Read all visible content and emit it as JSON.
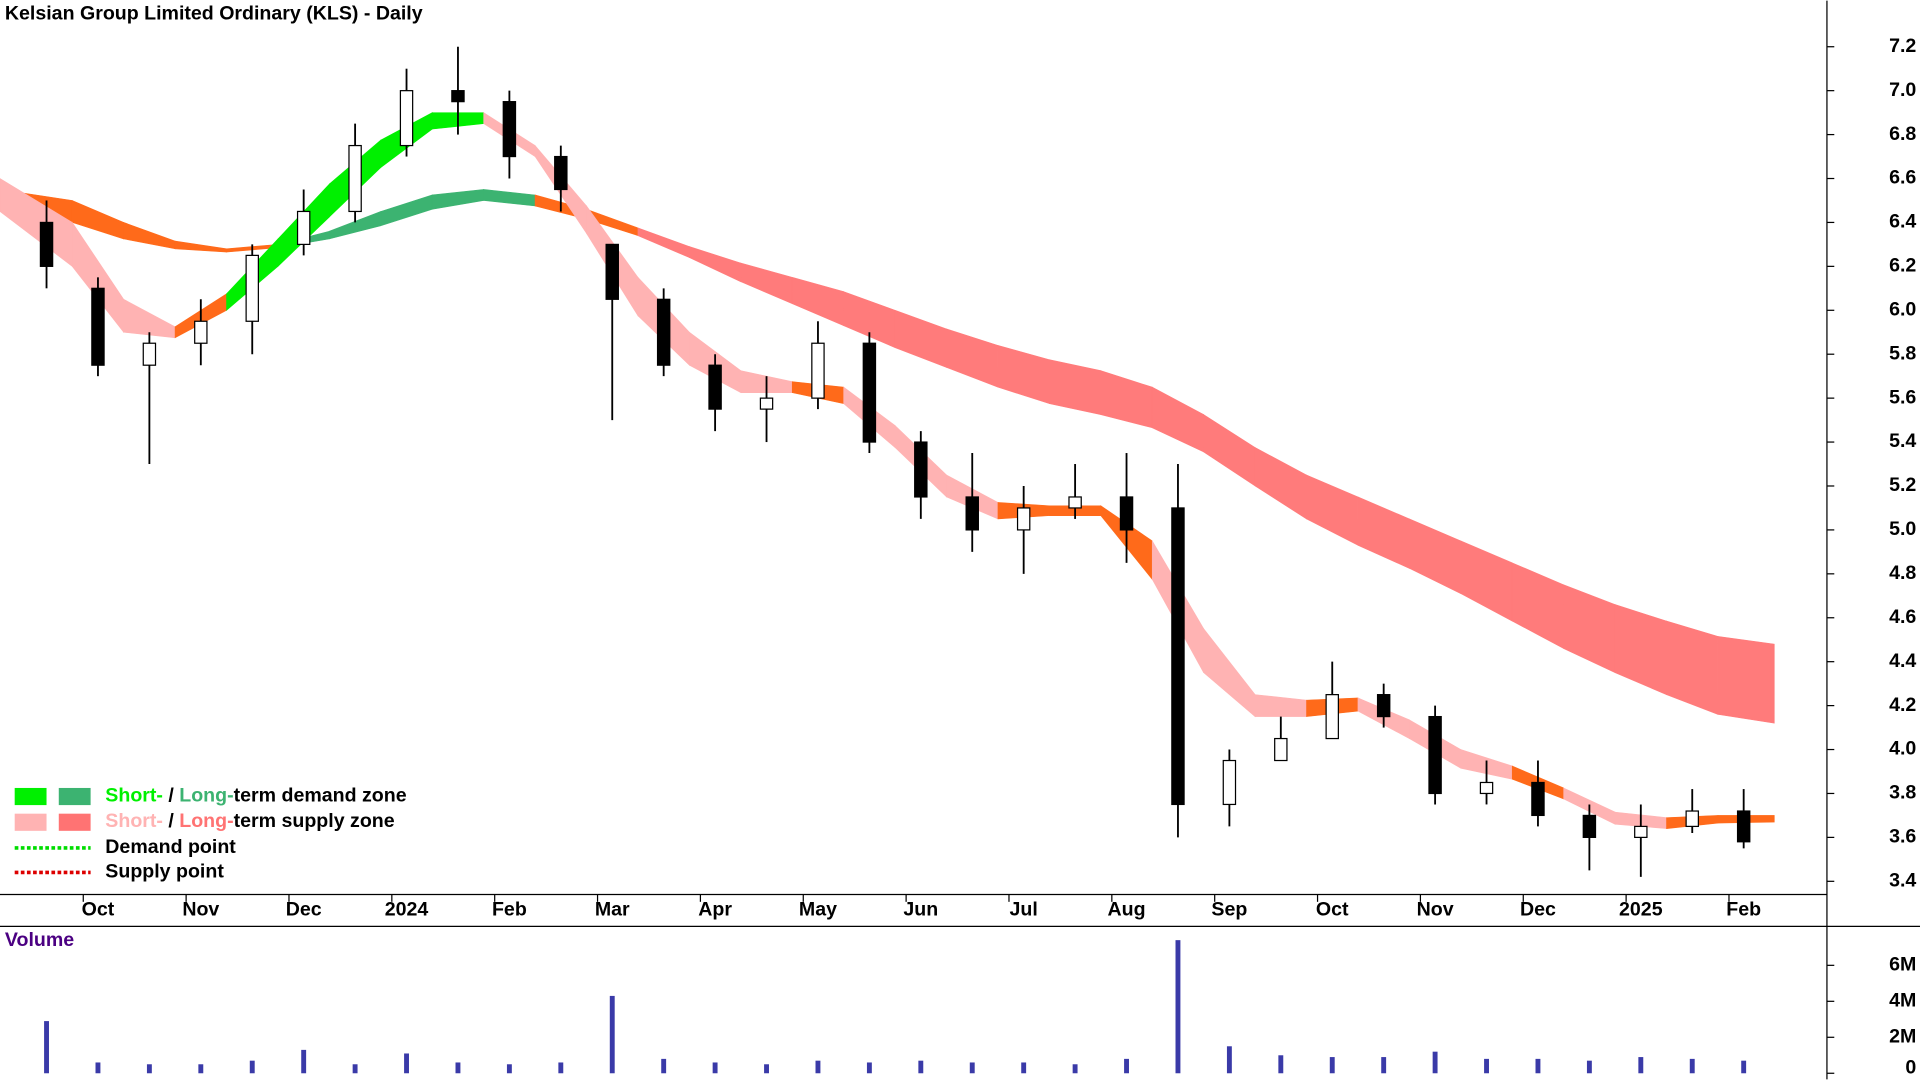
{
  "chart_data": {
    "type": "candlestick",
    "title": "Kelsian Group Limited Ordinary (KLS) - Daily",
    "categories": [
      null,
      "Oct",
      null,
      "Nov",
      null,
      "Dec",
      null,
      "2024",
      null,
      "Feb",
      null,
      "Mar",
      null,
      "Apr",
      null,
      "May",
      null,
      "Jun",
      null,
      "Jul",
      null,
      "Aug",
      null,
      "Sep",
      null,
      "Oct",
      null,
      "Nov",
      null,
      "Dec",
      null,
      "2025",
      null,
      "Feb"
    ],
    "open": [
      6.4,
      6.1,
      5.75,
      5.85,
      5.95,
      6.3,
      6.45,
      6.75,
      7.0,
      6.95,
      6.7,
      6.3,
      6.05,
      5.75,
      5.55,
      5.6,
      5.85,
      5.4,
      5.15,
      5.0,
      5.1,
      5.15,
      5.1,
      3.75,
      3.95,
      4.05,
      4.25,
      4.15,
      3.8,
      3.85,
      3.7,
      3.6,
      3.65,
      3.72
    ],
    "high": [
      6.5,
      6.15,
      5.9,
      6.05,
      6.3,
      6.55,
      6.85,
      7.1,
      7.2,
      7.0,
      6.75,
      6.3,
      6.1,
      5.8,
      5.7,
      5.95,
      5.9,
      5.45,
      5.35,
      5.2,
      5.3,
      5.35,
      5.3,
      4.0,
      4.15,
      4.4,
      4.3,
      4.2,
      3.95,
      3.95,
      3.75,
      3.75,
      3.82,
      3.82
    ],
    "low": [
      6.1,
      5.7,
      5.3,
      5.75,
      5.8,
      6.25,
      6.4,
      6.7,
      6.8,
      6.6,
      6.45,
      5.5,
      5.7,
      5.45,
      5.4,
      5.55,
      5.35,
      5.05,
      4.9,
      4.8,
      5.05,
      4.85,
      3.6,
      3.65,
      3.95,
      4.05,
      4.1,
      3.75,
      3.75,
      3.65,
      3.45,
      3.42,
      3.62,
      3.55
    ],
    "close": [
      6.2,
      5.75,
      5.85,
      5.95,
      6.25,
      6.45,
      6.75,
      7.0,
      6.95,
      6.7,
      6.55,
      6.05,
      5.75,
      5.55,
      5.6,
      5.85,
      5.4,
      5.15,
      5.0,
      5.1,
      5.15,
      5.0,
      3.75,
      3.95,
      4.05,
      4.25,
      4.15,
      3.8,
      3.85,
      3.7,
      3.6,
      3.65,
      3.72,
      3.58
    ],
    "bands": [
      {
        "upper": [
          6.55,
          6.45,
          6.35,
          6.28,
          6.28,
          6.32,
          6.4,
          6.5,
          6.55,
          6.55,
          6.5,
          6.42,
          6.33,
          6.25,
          6.18,
          6.12,
          6.05,
          5.95,
          5.88,
          5.8,
          5.75,
          5.7,
          5.6,
          5.45,
          5.3,
          5.2,
          5.1,
          5.0,
          4.9,
          4.8,
          4.7,
          4.62,
          4.55,
          4.48
        ],
        "lower": [
          6.45,
          6.35,
          6.3,
          6.26,
          6.27,
          6.3,
          6.35,
          6.42,
          6.5,
          6.5,
          6.45,
          6.38,
          6.3,
          6.18,
          6.08,
          5.98,
          5.88,
          5.78,
          5.7,
          5.6,
          5.55,
          5.5,
          5.43,
          5.28,
          5.12,
          4.98,
          4.88,
          4.77,
          4.65,
          4.52,
          4.4,
          4.3,
          4.2,
          4.12
        ],
        "colors": [
          "#ff6a1a",
          "#ff6a1a",
          "#ff6a1a",
          "#ff6a1a",
          "#ff6a1a",
          "#3cb371",
          "#3cb371",
          "#3cb371",
          "#3cb371",
          "#3cb371",
          "#ff6a1a",
          "#ff6a1a",
          "#ff7b7b",
          "#ff7b7b",
          "#ff7b7b",
          "#ff7b7b",
          "#ff7b7b",
          "#ff7b7b",
          "#ff7b7b",
          "#ff7b7b",
          "#ff7b7b",
          "#ff7b7b",
          "#ff7b7b",
          "#ff7b7b",
          "#ff7b7b",
          "#ff7b7b",
          "#ff7b7b",
          "#ff7b7b",
          "#ff7b7b",
          "#ff7b7b",
          "#ff7b7b",
          "#ff7b7b",
          "#ff7b7b",
          "#ff7b7b"
        ]
      },
      {
        "upper": [
          6.6,
          6.2,
          5.9,
          5.95,
          6.2,
          6.45,
          6.7,
          6.85,
          6.95,
          6.85,
          6.65,
          6.3,
          6.0,
          5.8,
          5.65,
          5.7,
          5.6,
          5.35,
          5.15,
          5.1,
          5.12,
          5.1,
          4.8,
          4.3,
          4.2,
          4.25,
          4.22,
          4.05,
          3.95,
          3.9,
          3.75,
          3.68,
          3.7,
          3.7
        ],
        "lower": [
          6.45,
          5.95,
          5.85,
          5.9,
          6.1,
          6.3,
          6.55,
          6.75,
          6.9,
          6.8,
          6.6,
          6.1,
          5.85,
          5.65,
          5.6,
          5.65,
          5.5,
          5.25,
          5.05,
          5.05,
          5.08,
          5.05,
          4.5,
          4.2,
          4.1,
          4.2,
          4.15,
          3.95,
          3.88,
          3.85,
          3.7,
          3.62,
          3.66,
          3.67
        ],
        "colors": [
          "#ffb3b3",
          "#ffb3b3",
          "#ffb3b3",
          "#ff6a1a",
          "#00f000",
          "#00f000",
          "#00f000",
          "#00f000",
          "#00f000",
          "#ffb3b3",
          "#ffb3b3",
          "#ffb3b3",
          "#ffb3b3",
          "#ffb3b3",
          "#ffb3b3",
          "#ff6a1a",
          "#ffb3b3",
          "#ffb3b3",
          "#ffb3b3",
          "#ff6a1a",
          "#ff6a1a",
          "#ff6a1a",
          "#ffb3b3",
          "#ffb3b3",
          "#ffb3b3",
          "#ff6a1a",
          "#ffb3b3",
          "#ffb3b3",
          "#ffb3b3",
          "#ff6a1a",
          "#ffb3b3",
          "#ffb3b3",
          "#ff6a1a",
          "#ff6a1a"
        ]
      }
    ],
    "ylim": [
      3.34,
      7.41
    ],
    "yticks": [
      3.4,
      3.6,
      3.8,
      {
        "value": 4,
        "label": "4.0"
      },
      4.2,
      4.4,
      4.6,
      4.8,
      {
        "value": 5,
        "label": "5.0"
      },
      5.2,
      5.4,
      5.6,
      5.8,
      {
        "value": 6,
        "label": "6.0"
      },
      6.2,
      6.4,
      6.6,
      6.8,
      {
        "value": 7,
        "label": "7.0"
      },
      7.2
    ],
    "legend": [
      {
        "short": "Short-",
        "sep": " / ",
        "long": "Long-",
        "text": "term demand zone",
        "colors": [
          "#00f000",
          "#3cb371"
        ]
      },
      {
        "short": "Short-",
        "sep": " / ",
        "long": "Long-",
        "text": "term supply zone",
        "colors": [
          "#ffb3b3",
          "#ff7373"
        ]
      },
      {
        "text": "Demand point",
        "color": "#00dd00"
      },
      {
        "text": "Supply point",
        "color": "#dd0000"
      }
    ],
    "volume": {
      "label": "Volume",
      "color": "#3a3aa8",
      "values": [
        2900000,
        600000,
        500000,
        500000,
        700000,
        1300000,
        500000,
        1100000,
        600000,
        500000,
        600000,
        4300000,
        800000,
        600000,
        500000,
        700000,
        600000,
        700000,
        600000,
        600000,
        500000,
        800000,
        7400000,
        1500000,
        1000000,
        900000,
        900000,
        1200000,
        800000,
        800000,
        700000,
        900000,
        800000,
        700000
      ],
      "ylim": [
        0,
        8100000
      ],
      "yticks": [
        0,
        {
          "value": 2000000,
          "label": "2M"
        },
        {
          "value": 4000000,
          "label": "4M"
        },
        {
          "value": 6000000,
          "label": "6M"
        }
      ]
    }
  }
}
